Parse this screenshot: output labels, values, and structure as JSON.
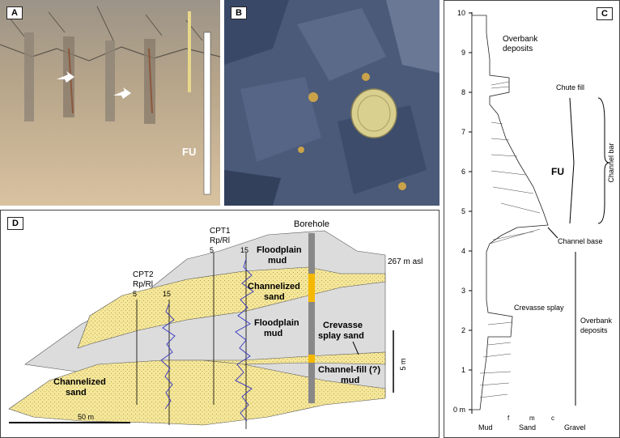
{
  "panels": {
    "A": {
      "label": "A",
      "fu_label": "FU"
    },
    "B": {
      "label": "B"
    },
    "C": {
      "label": "C",
      "y_ticks": [
        "0 m",
        "1",
        "2",
        "3",
        "4",
        "5",
        "6",
        "7",
        "8",
        "9",
        "10"
      ],
      "x_labels": [
        "Mud",
        "f",
        "Sand",
        "m",
        "c",
        "Gravel"
      ],
      "annotations": {
        "overbank_top_1": "Overbank",
        "overbank_top_2": "deposits",
        "chute_fill": "Chute fill",
        "fu": "FU",
        "channel_bar": "Channel bar",
        "channel_base": "Channel base",
        "crevasse_splay": "Crevasse splay",
        "overbank_low_1": "Overbank",
        "overbank_low_2": "deposits"
      }
    },
    "D": {
      "label": "D",
      "borehole": "Borehole",
      "cpt1_1": "CPT1",
      "cpt1_2": "Rp/Rl",
      "cpt1_s1": "5",
      "cpt1_s2": "15",
      "cpt2_1": "CPT2",
      "cpt2_2": "Rp/Rl",
      "cpt2_s1": "5",
      "cpt2_s2": "15",
      "elevation": "267 m asl",
      "units": {
        "floodplain_top_1": "Floodplain",
        "floodplain_top_2": "mud",
        "channelized_top_1": "Channelized",
        "channelized_top_2": "sand",
        "floodplain_mid_1": "Floodplain",
        "floodplain_mid_2": "mud",
        "crevasse_1": "Crevasse",
        "crevasse_2": "splay sand",
        "channelized_low_1": "Channelized",
        "channelized_low_2": "sand",
        "channelfill_1": "Channel-fill (?)",
        "channelfill_2": "mud"
      },
      "vscale": "5 m",
      "hscale": "50 m"
    }
  },
  "colors": {
    "sand": "#f5e79a",
    "mud": "#dcdcdc",
    "borehole_sand": "#f5b800",
    "borehole": "#888888"
  }
}
